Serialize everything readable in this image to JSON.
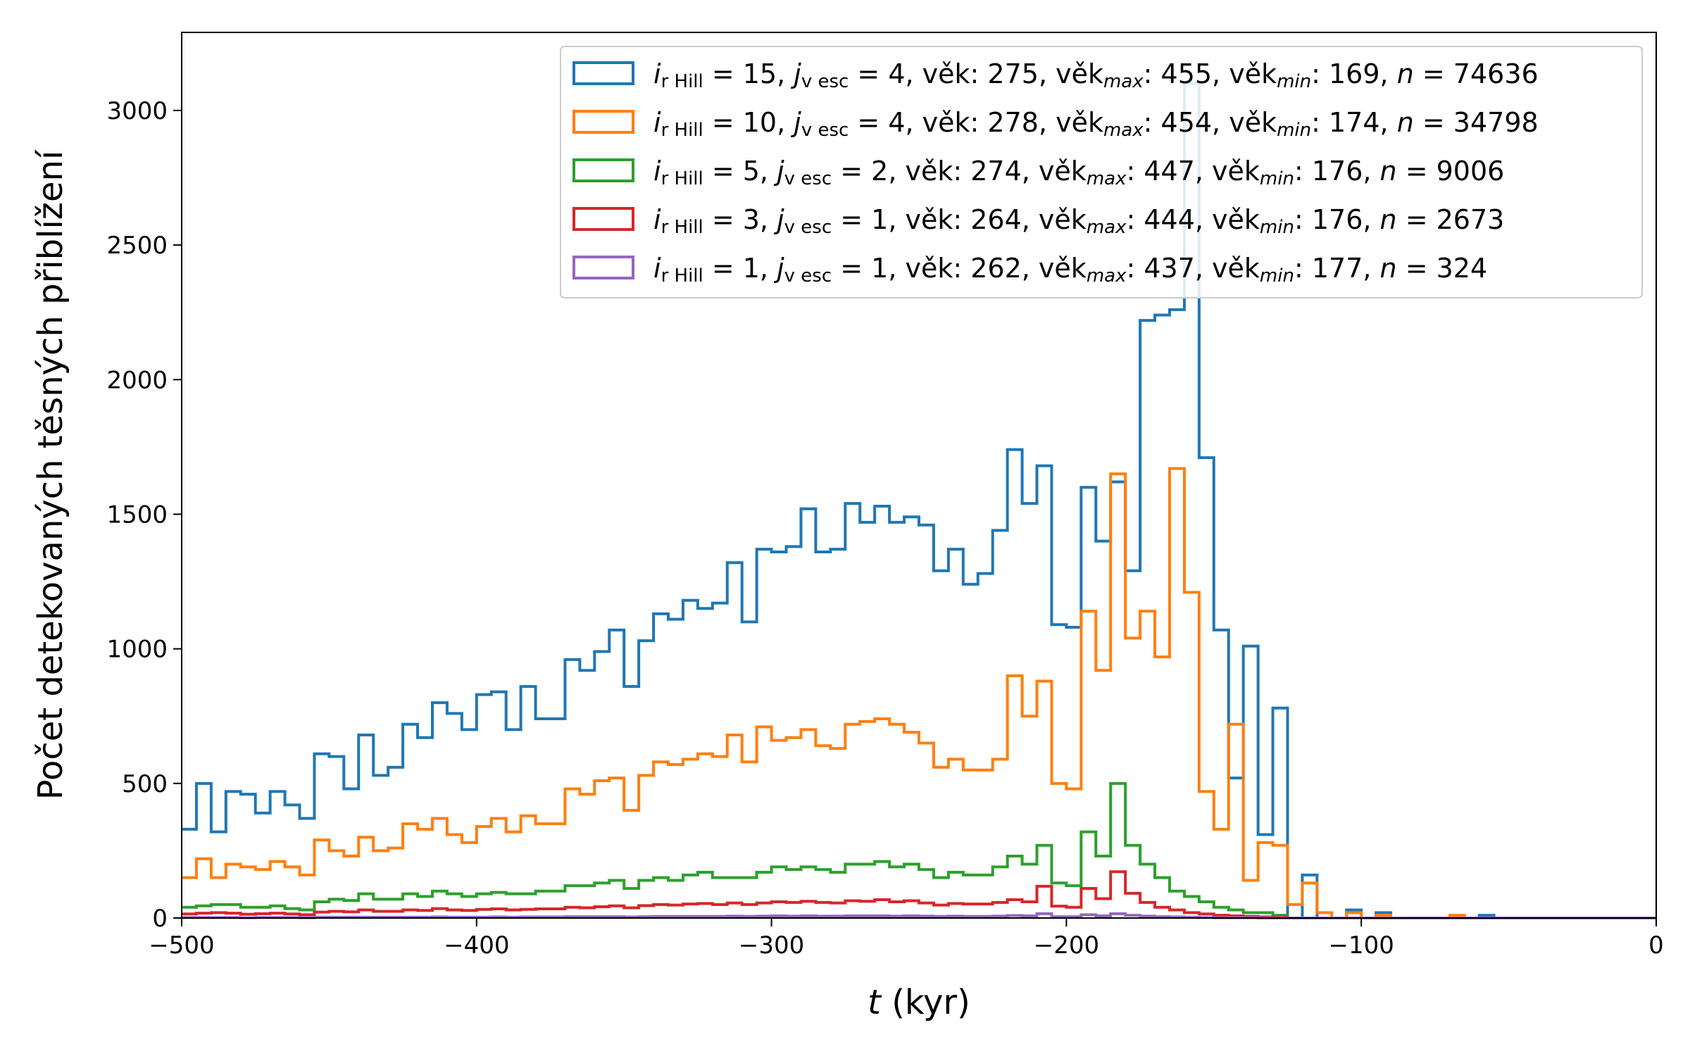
{
  "chart_data": {
    "type": "histogram-step",
    "xlabel_var": "t",
    "xlabel_unit": " (kyr)",
    "ylabel": "Počet detekovaných těsných přiblížení",
    "xlim": [
      -500,
      0
    ],
    "ylim": [
      0,
      3290
    ],
    "bin_width": 5,
    "bin_start": -500,
    "x_ticks": [
      -500,
      -400,
      -300,
      -200,
      -100,
      0
    ],
    "x_tick_labels": [
      "−500",
      "−400",
      "−300",
      "−200",
      "−100",
      "0"
    ],
    "y_ticks": [
      0,
      500,
      1000,
      1500,
      2000,
      2500,
      3000
    ],
    "y_tick_labels": [
      "0",
      "500",
      "1000",
      "1500",
      "2000",
      "2500",
      "3000"
    ],
    "legend_position": "top-right",
    "series": [
      {
        "color": "#1f77b4",
        "legend": {
          "i_sub": "r Hill",
          "i_val": "= 15",
          "j_sub": "v esc",
          "j_val": "= 4",
          "age": "věk: 275",
          "age_max_val": ": 455",
          "age_min_val": ": 169",
          "n_val": "= 74636"
        },
        "values": [
          330,
          500,
          320,
          470,
          460,
          390,
          470,
          420,
          370,
          610,
          600,
          480,
          680,
          530,
          560,
          720,
          670,
          800,
          760,
          700,
          830,
          840,
          700,
          860,
          740,
          740,
          960,
          920,
          990,
          1070,
          860,
          1030,
          1130,
          1110,
          1180,
          1150,
          1170,
          1320,
          1100,
          1370,
          1360,
          1380,
          1520,
          1360,
          1370,
          1540,
          1470,
          1530,
          1470,
          1490,
          1460,
          1290,
          1370,
          1240,
          1280,
          1440,
          1740,
          1540,
          1680,
          1090,
          1080,
          1600,
          1400,
          1620,
          1290,
          2220,
          2240,
          2260,
          3100,
          1710,
          1070,
          520,
          1010,
          310,
          780,
          0,
          160,
          0,
          0,
          30,
          0,
          20,
          0,
          0,
          0,
          0,
          0,
          0,
          10,
          0,
          0,
          0,
          0,
          0,
          0,
          0,
          0,
          0,
          0,
          0
        ]
      },
      {
        "color": "#ff7f0e",
        "legend": {
          "i_sub": "r Hill",
          "i_val": "= 10",
          "j_sub": "v esc",
          "j_val": "= 4",
          "age": "věk: 278",
          "age_max_val": ": 454",
          "age_min_val": ": 174",
          "n_val": "= 34798"
        },
        "values": [
          150,
          220,
          150,
          200,
          190,
          180,
          210,
          190,
          160,
          290,
          250,
          230,
          300,
          250,
          260,
          350,
          330,
          370,
          310,
          280,
          340,
          370,
          320,
          380,
          350,
          350,
          480,
          460,
          510,
          520,
          400,
          530,
          580,
          570,
          590,
          610,
          600,
          680,
          580,
          710,
          660,
          670,
          700,
          640,
          630,
          720,
          730,
          740,
          720,
          690,
          650,
          560,
          590,
          550,
          550,
          590,
          900,
          750,
          880,
          500,
          480,
          1140,
          920,
          1650,
          1040,
          1140,
          970,
          1670,
          1210,
          470,
          330,
          720,
          140,
          280,
          270,
          50,
          130,
          20,
          0,
          20,
          0,
          10,
          0,
          0,
          0,
          0,
          10,
          0,
          0,
          0,
          0,
          0,
          0,
          0,
          0,
          0,
          0,
          0,
          0,
          0
        ]
      },
      {
        "color": "#2ca02c",
        "legend": {
          "i_sub": "r Hill",
          "i_val": "=  5",
          "j_sub": "v esc",
          "j_val": "= 2",
          "age": "věk: 274",
          "age_max_val": ": 447",
          "age_min_val": ": 176",
          "n_val": "= 9006"
        },
        "values": [
          40,
          45,
          50,
          50,
          40,
          40,
          45,
          35,
          30,
          60,
          70,
          65,
          90,
          70,
          70,
          90,
          80,
          100,
          90,
          80,
          90,
          95,
          90,
          90,
          100,
          100,
          120,
          120,
          130,
          140,
          110,
          140,
          150,
          140,
          160,
          170,
          150,
          150,
          150,
          170,
          190,
          180,
          190,
          180,
          170,
          200,
          200,
          210,
          190,
          200,
          180,
          150,
          170,
          160,
          160,
          190,
          230,
          200,
          270,
          130,
          120,
          320,
          230,
          500,
          270,
          200,
          150,
          100,
          80,
          60,
          40,
          30,
          20,
          20,
          10,
          0,
          0,
          0,
          0,
          0,
          0,
          0,
          0,
          0,
          0,
          0,
          0,
          0,
          0,
          0,
          0,
          0,
          0,
          0,
          0,
          0,
          0,
          0,
          0,
          0
        ]
      },
      {
        "color": "#d62728",
        "legend": {
          "i_sub": "r Hill",
          "i_val": "=  3",
          "j_sub": "v esc",
          "j_val": "= 1",
          "age": "věk: 264",
          "age_max_val": ": 444",
          "age_min_val": ": 176",
          "n_val": "= 2673"
        },
        "values": [
          15,
          18,
          20,
          18,
          14,
          16,
          18,
          15,
          12,
          22,
          25,
          23,
          30,
          25,
          25,
          30,
          28,
          35,
          30,
          28,
          32,
          34,
          30,
          32,
          34,
          34,
          40,
          38,
          42,
          45,
          38,
          46,
          50,
          48,
          52,
          54,
          50,
          56,
          50,
          56,
          60,
          58,
          62,
          58,
          56,
          64,
          62,
          68,
          60,
          64,
          56,
          48,
          54,
          52,
          52,
          58,
          68,
          60,
          118,
          44,
          40,
          110,
          72,
          172,
          92,
          58,
          40,
          30,
          20,
          15,
          10,
          8,
          6,
          4,
          3,
          0,
          0,
          0,
          0,
          0,
          0,
          0,
          0,
          0,
          0,
          0,
          0,
          0,
          0,
          0,
          0,
          0,
          0,
          0,
          0,
          0,
          0,
          0,
          0,
          0
        ]
      },
      {
        "color": "#9467bd",
        "legend": {
          "i_sub": "r Hill",
          "i_val": "=  1",
          "j_sub": "v esc",
          "j_val": "= 1",
          "age": "věk: 262",
          "age_max_val": ": 437",
          "age_min_val": ": 177",
          "n_val": "= 324"
        },
        "values": [
          2,
          2,
          2,
          2,
          1,
          2,
          2,
          2,
          1,
          3,
          3,
          3,
          3,
          3,
          3,
          3,
          3,
          4,
          3,
          3,
          3,
          4,
          3,
          4,
          4,
          4,
          5,
          5,
          5,
          5,
          4,
          5,
          6,
          6,
          6,
          6,
          6,
          7,
          6,
          7,
          8,
          7,
          8,
          7,
          7,
          8,
          8,
          8,
          7,
          8,
          7,
          6,
          7,
          6,
          6,
          7,
          9,
          8,
          16,
          5,
          5,
          12,
          8,
          16,
          10,
          7,
          5,
          4,
          3,
          2,
          1,
          1,
          1,
          0,
          0,
          0,
          0,
          0,
          0,
          0,
          0,
          0,
          0,
          0,
          0,
          0,
          0,
          0,
          0,
          0,
          0,
          0,
          0,
          0,
          0,
          0,
          0,
          0,
          0,
          0
        ]
      }
    ],
    "legend_labels": {
      "i": "i",
      "j": "j",
      "age_word": "věk",
      "max_sub": "max",
      "min_sub": "min",
      "n": "n"
    }
  }
}
